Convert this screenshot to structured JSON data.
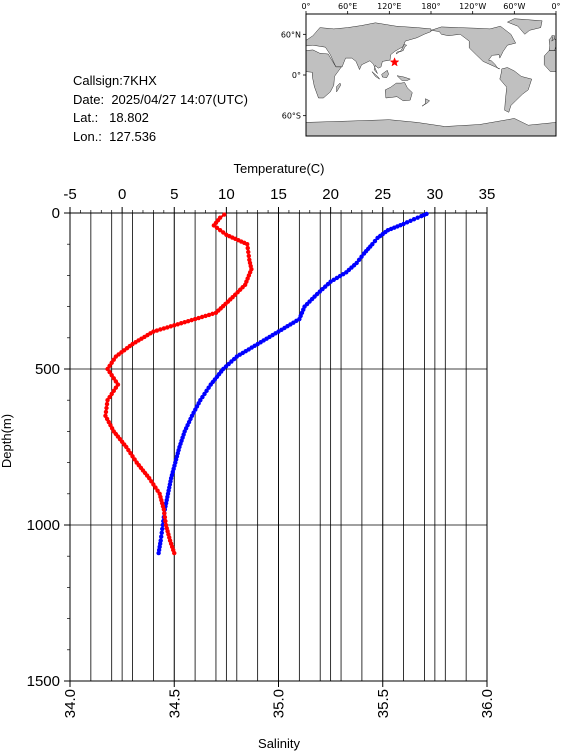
{
  "info": {
    "callsign_label": "Callsign:",
    "callsign": "7KHX",
    "date_label": "Date:",
    "date": "2025/04/27 14:07(UTC)",
    "lat_label": "Lat.:",
    "lat": "18.802",
    "lon_label": "Lon.:",
    "lon": "127.536"
  },
  "map": {
    "top_labels": [
      "0°",
      "60°E",
      "120°E",
      "180°",
      "120°W",
      "60°W",
      "0°"
    ],
    "left_labels": [
      "60°N",
      "0°",
      "60°S"
    ],
    "land_color": "#c0c0c0",
    "ocean_color": "#ffffff",
    "marker_color": "#ff0000",
    "marker_icon": "star-icon"
  },
  "chart_data": {
    "type": "line",
    "top_axis_label": "Temperature(C)",
    "bottom_axis_label": "Salinity",
    "left_axis_label": "Depth(m)",
    "temperature_ticks": [
      "-5",
      "0",
      "5",
      "10",
      "15",
      "20",
      "25",
      "30",
      "35"
    ],
    "salinity_ticks": [
      "34.0",
      "34.5",
      "35.0",
      "35.5",
      "36.0"
    ],
    "depth_ticks": [
      "0",
      "500",
      "1000",
      "1500"
    ],
    "temperature_range": [
      -5,
      35
    ],
    "salinity_range": [
      34.0,
      36.0
    ],
    "depth_range": [
      0,
      1500
    ],
    "depth_inverted": true,
    "grid": true,
    "series": [
      {
        "quantity": "temperature",
        "color": "#0000ff",
        "points": [
          [
            29.2,
            3
          ],
          [
            28.7,
            10
          ],
          [
            28.0,
            20
          ],
          [
            27.0,
            35
          ],
          [
            25.5,
            55
          ],
          [
            24.5,
            80
          ],
          [
            24.0,
            100
          ],
          [
            23.2,
            130
          ],
          [
            22.5,
            160
          ],
          [
            21.5,
            190
          ],
          [
            20.0,
            220
          ],
          [
            18.7,
            260
          ],
          [
            17.5,
            300
          ],
          [
            17.0,
            340
          ],
          [
            15.0,
            380
          ],
          [
            13.0,
            420
          ],
          [
            11.0,
            460
          ],
          [
            9.7,
            500
          ],
          [
            8.5,
            550
          ],
          [
            7.5,
            600
          ],
          [
            6.7,
            650
          ],
          [
            6.0,
            700
          ],
          [
            5.5,
            750
          ],
          [
            5.1,
            800
          ],
          [
            4.7,
            850
          ],
          [
            4.4,
            900
          ],
          [
            4.1,
            950
          ],
          [
            3.9,
            1000
          ],
          [
            3.7,
            1050
          ],
          [
            3.5,
            1090
          ]
        ]
      },
      {
        "quantity": "salinity",
        "color": "#ff0000",
        "points": [
          [
            34.74,
            5
          ],
          [
            34.72,
            15
          ],
          [
            34.69,
            40
          ],
          [
            34.75,
            70
          ],
          [
            34.85,
            100
          ],
          [
            34.86,
            150
          ],
          [
            34.87,
            180
          ],
          [
            34.84,
            230
          ],
          [
            34.78,
            270
          ],
          [
            34.7,
            320
          ],
          [
            34.55,
            350
          ],
          [
            34.4,
            380
          ],
          [
            34.3,
            420
          ],
          [
            34.22,
            460
          ],
          [
            34.18,
            500
          ],
          [
            34.2,
            520
          ],
          [
            34.23,
            550
          ],
          [
            34.18,
            600
          ],
          [
            34.17,
            650
          ],
          [
            34.21,
            700
          ],
          [
            34.27,
            750
          ],
          [
            34.32,
            800
          ],
          [
            34.38,
            850
          ],
          [
            34.43,
            900
          ],
          [
            34.45,
            950
          ],
          [
            34.46,
            1000
          ],
          [
            34.48,
            1050
          ],
          [
            34.5,
            1090
          ]
        ]
      }
    ]
  }
}
